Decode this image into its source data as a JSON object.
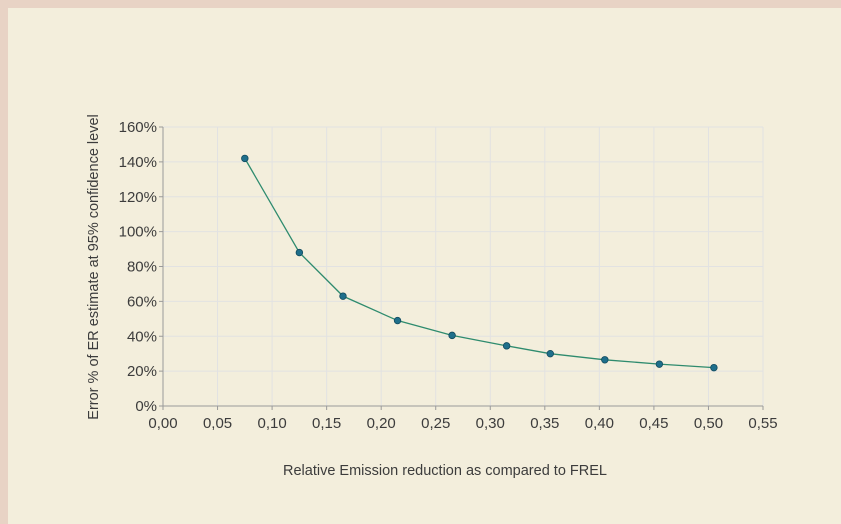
{
  "chart_data": {
    "type": "line",
    "title": "",
    "xlabel": "Relative Emission reduction as compared to FREL",
    "ylabel": "Error % of ER estimate at 95% confidence level",
    "xlim": [
      0,
      0.55
    ],
    "ylim": [
      0,
      160
    ],
    "x_ticks": [
      "0,00",
      "0,05",
      "0,10",
      "0,15",
      "0,20",
      "0,25",
      "0,30",
      "0,35",
      "0,40",
      "0,45",
      "0,50",
      "0,55"
    ],
    "y_ticks": [
      "0%",
      "20%",
      "40%",
      "60%",
      "80%",
      "100%",
      "120%",
      "140%",
      "160%"
    ],
    "grid": true,
    "series": [
      {
        "x": [
          0.075,
          0.125,
          0.165,
          0.215,
          0.265,
          0.315,
          0.355,
          0.405,
          0.455,
          0.505
        ],
        "y": [
          142,
          88,
          63,
          49,
          40.5,
          34.5,
          30,
          26.5,
          24,
          22
        ]
      }
    ],
    "colors": {
      "line": "#2e8b6e",
      "marker": "#1f6f8b",
      "grid": "#e2e2e2",
      "background": "#f3eedc"
    }
  }
}
